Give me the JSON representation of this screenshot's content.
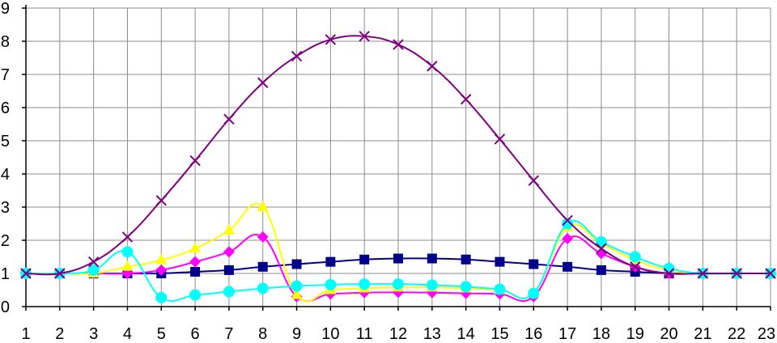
{
  "chart_data": {
    "type": "line",
    "title": "",
    "xlabel": "",
    "ylabel": "",
    "x": [
      1,
      2,
      3,
      4,
      5,
      6,
      7,
      8,
      9,
      10,
      11,
      12,
      13,
      14,
      15,
      16,
      17,
      18,
      19,
      20,
      21,
      22,
      23
    ],
    "xlim": [
      1,
      23
    ],
    "ylim": [
      0,
      9
    ],
    "y_ticks": [
      "0",
      "1",
      "2",
      "3",
      "4",
      "5",
      "6",
      "7",
      "8",
      "9"
    ],
    "x_ticks": [
      "1",
      "2",
      "3",
      "4",
      "5",
      "6",
      "7",
      "8",
      "9",
      "10",
      "11",
      "12",
      "13",
      "14",
      "15",
      "16",
      "17",
      "18",
      "19",
      "20",
      "21",
      "22",
      "23"
    ],
    "grid": true,
    "legend": "none",
    "series": [
      {
        "color": "#00008b",
        "marker": "square",
        "values": [
          1,
          1,
          1.0,
          1.0,
          1.0,
          1.05,
          1.1,
          1.2,
          1.28,
          1.35,
          1.42,
          1.45,
          1.45,
          1.42,
          1.35,
          1.28,
          1.2,
          1.1,
          1.05,
          1.0,
          1,
          1,
          1
        ]
      },
      {
        "color": "#ff00ff",
        "marker": "diamond",
        "values": [
          1,
          1,
          1.0,
          1.0,
          1.1,
          1.35,
          1.65,
          2.1,
          0.3,
          0.38,
          0.42,
          0.43,
          0.42,
          0.4,
          0.38,
          0.3,
          2.05,
          1.6,
          1.2,
          1.0,
          1,
          1,
          1
        ]
      },
      {
        "color": "#ffff00",
        "marker": "triangle",
        "values": [
          1,
          1,
          1.0,
          1.2,
          1.4,
          1.75,
          2.3,
          3.0,
          0.35,
          0.5,
          0.55,
          0.58,
          0.58,
          0.55,
          0.5,
          0.4,
          2.4,
          1.9,
          1.4,
          1.1,
          1,
          1,
          1
        ]
      },
      {
        "color": "#00ffff",
        "marker": "circle",
        "values": [
          1,
          1,
          1.1,
          1.65,
          0.27,
          0.35,
          0.45,
          0.55,
          0.62,
          0.66,
          0.68,
          0.68,
          0.65,
          0.6,
          0.52,
          0.4,
          2.5,
          1.95,
          1.5,
          1.15,
          1,
          1,
          1
        ]
      },
      {
        "color": "#800080",
        "marker": "x",
        "values": [
          1,
          1,
          1.35,
          2.1,
          3.2,
          4.4,
          5.65,
          6.75,
          7.55,
          8.05,
          8.15,
          7.9,
          7.25,
          6.25,
          5.05,
          3.8,
          2.6,
          1.75,
          1.2,
          1.0,
          1,
          1,
          1
        ]
      }
    ]
  }
}
